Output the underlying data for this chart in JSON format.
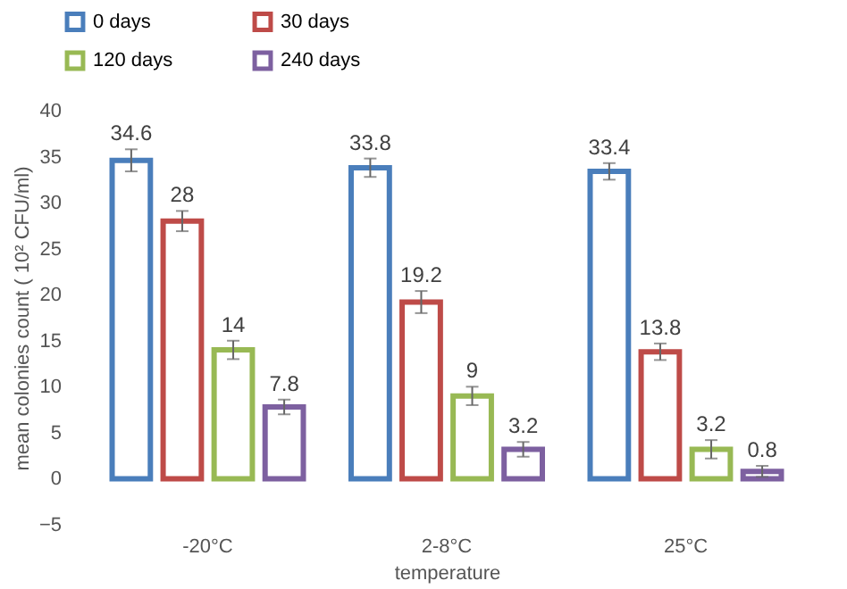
{
  "chart_data": {
    "type": "bar",
    "xlabel": "temperature",
    "ylabel": "mean colonies count ( 10² CFU/ml)",
    "categories": [
      "-20°C",
      "2-8°C",
      "25°C"
    ],
    "series": [
      {
        "name": "0 days",
        "color": "#4a7ebb",
        "values": [
          34.6,
          33.8,
          33.4
        ],
        "errors": [
          1.2,
          1,
          0.9
        ]
      },
      {
        "name": "30 days",
        "color": "#be4b48",
        "values": [
          28,
          19.2,
          13.8
        ],
        "errors": [
          1.1,
          1.2,
          0.9
        ]
      },
      {
        "name": "120 days",
        "color": "#98b954",
        "values": [
          14,
          9,
          3.2
        ],
        "errors": [
          1,
          1,
          1
        ]
      },
      {
        "name": "240 days",
        "color": "#7d60a0",
        "values": [
          7.8,
          3.2,
          0.8
        ],
        "errors": [
          0.8,
          0.8,
          0.6
        ]
      }
    ],
    "ylim": [
      -5,
      40
    ],
    "yticks": [
      -5,
      0,
      5,
      10,
      15,
      20,
      25,
      30,
      35,
      40
    ],
    "data_labels": true,
    "legend": "top"
  }
}
